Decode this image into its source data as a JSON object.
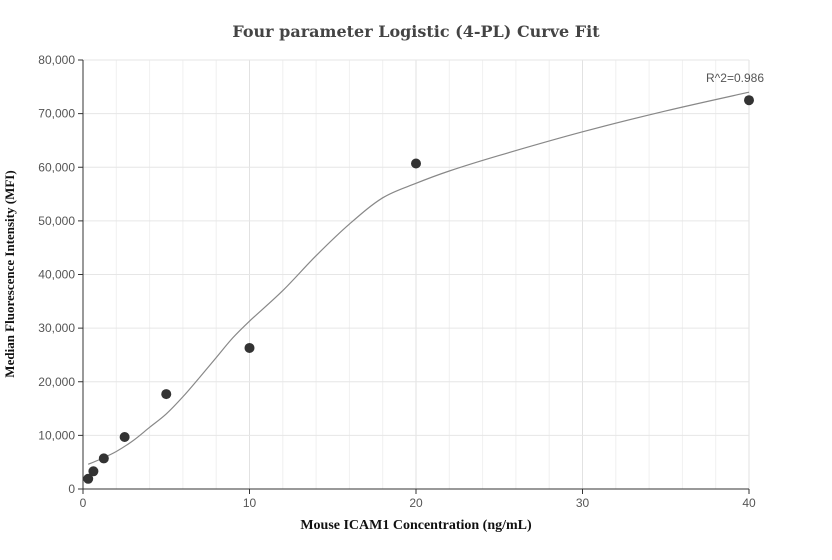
{
  "chart_data": {
    "type": "scatter",
    "title": "Four parameter Logistic (4-PL) Curve Fit",
    "xlabel": "Mouse ICAM1 Concentration (ng/mL)",
    "ylabel": "Median Fluorescence Intensity (MFI)",
    "xlim": [
      0,
      40
    ],
    "ylim": [
      0,
      80000
    ],
    "x_ticks": [
      0,
      10,
      20,
      30,
      40
    ],
    "x_tick_labels": [
      "0",
      "10",
      "20",
      "30",
      "40"
    ],
    "y_ticks": [
      0,
      10000,
      20000,
      30000,
      40000,
      50000,
      60000,
      70000,
      80000
    ],
    "y_tick_labels": [
      "0",
      "10,000",
      "20,000",
      "30,000",
      "40,000",
      "50,000",
      "60,000",
      "70,000",
      "80,000"
    ],
    "grid": true,
    "series": [
      {
        "type": "scatter",
        "x": [
          0.3125,
          0.625,
          1.25,
          2.5,
          5,
          10,
          20,
          40
        ],
        "y": [
          1900,
          3300,
          5700,
          9700,
          17700,
          26300,
          60700,
          72500
        ],
        "color": "#333333"
      },
      {
        "type": "line",
        "x": [
          0.3125,
          1,
          2,
          3,
          4,
          5,
          6,
          7,
          8,
          9,
          10,
          12,
          14,
          16,
          18,
          20,
          22,
          25,
          30,
          35,
          40
        ],
        "y": [
          4600,
          5500,
          7000,
          9000,
          11500,
          14000,
          17200,
          20800,
          24500,
          28200,
          31300,
          37000,
          43500,
          49400,
          54300,
          57000,
          59300,
          62200,
          66600,
          70500,
          74000
        ],
        "color": "#888888"
      }
    ],
    "annotation": "R^2=0.986"
  }
}
